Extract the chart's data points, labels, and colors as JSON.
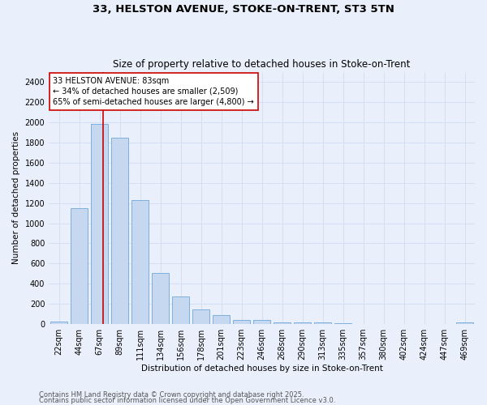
{
  "title1": "33, HELSTON AVENUE, STOKE-ON-TRENT, ST3 5TN",
  "title2": "Size of property relative to detached houses in Stoke-on-Trent",
  "xlabel": "Distribution of detached houses by size in Stoke-on-Trent",
  "ylabel": "Number of detached properties",
  "categories": [
    "22sqm",
    "44sqm",
    "67sqm",
    "89sqm",
    "111sqm",
    "134sqm",
    "156sqm",
    "178sqm",
    "201sqm",
    "223sqm",
    "246sqm",
    "268sqm",
    "290sqm",
    "313sqm",
    "335sqm",
    "357sqm",
    "380sqm",
    "402sqm",
    "424sqm",
    "447sqm",
    "469sqm"
  ],
  "values": [
    25,
    1150,
    1980,
    1850,
    1230,
    510,
    275,
    150,
    90,
    40,
    40,
    20,
    20,
    15,
    8,
    5,
    5,
    5,
    5,
    5,
    15
  ],
  "bar_color": "#c5d8f0",
  "bar_edge_color": "#5b9bd5",
  "bg_color": "#eaf0fb",
  "grid_color": "#d0ddf0",
  "vline_color": "#cc0000",
  "annotation_text": "33 HELSTON AVENUE: 83sqm\n← 34% of detached houses are smaller (2,509)\n65% of semi-detached houses are larger (4,800) →",
  "annotation_box_color": "#ffffff",
  "annotation_box_edge": "#cc0000",
  "ylim": [
    0,
    2500
  ],
  "yticks": [
    0,
    200,
    400,
    600,
    800,
    1000,
    1200,
    1400,
    1600,
    1800,
    2000,
    2200,
    2400
  ],
  "footer1": "Contains HM Land Registry data © Crown copyright and database right 2025.",
  "footer2": "Contains public sector information licensed under the Open Government Licence v3.0.",
  "title_fontsize": 9.5,
  "subtitle_fontsize": 8.5,
  "axis_label_fontsize": 7.5,
  "tick_fontsize": 7,
  "annotation_fontsize": 7,
  "footer_fontsize": 6
}
